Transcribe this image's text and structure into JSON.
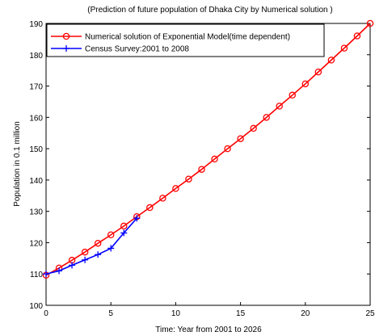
{
  "chart_data": {
    "type": "line",
    "title": "(Prediction of future population of Dhaka City by Numerical solution )",
    "xlabel": "Time: Year from 2001 to 2026",
    "ylabel": "Population in 0.1 million",
    "xlim": [
      0,
      25
    ],
    "ylim": [
      100,
      190
    ],
    "xticks": [
      0,
      5,
      10,
      15,
      20,
      25
    ],
    "yticks": [
      100,
      110,
      120,
      130,
      140,
      150,
      160,
      170,
      180,
      190
    ],
    "grid": false,
    "legend_position": "top-left",
    "series": [
      {
        "name": "Numerical solution of Exponential Model(time dependent)",
        "color": "#ff0000",
        "marker": "circle",
        "x": [
          0,
          1,
          2,
          3,
          4,
          5,
          6,
          7,
          8,
          9,
          10,
          11,
          12,
          13,
          14,
          15,
          16,
          17,
          18,
          19,
          20,
          21,
          22,
          23,
          24,
          25
        ],
        "y": [
          109.6,
          111.9,
          114.4,
          117.0,
          119.8,
          122.5,
          125.3,
          128.3,
          131.2,
          134.2,
          137.3,
          140.3,
          143.4,
          146.7,
          150.0,
          153.2,
          156.5,
          160.0,
          163.6,
          167.1,
          170.7,
          174.5,
          178.3,
          182.1,
          186.0,
          190.0
        ]
      },
      {
        "name": "Census Survey:2001 to 2008",
        "color": "#0000ff",
        "marker": "plus",
        "x": [
          0,
          1,
          2,
          3,
          4,
          5,
          6,
          7
        ],
        "y": [
          110.0,
          111.0,
          112.8,
          114.5,
          116.2,
          118.2,
          123.1,
          127.8
        ]
      }
    ]
  }
}
